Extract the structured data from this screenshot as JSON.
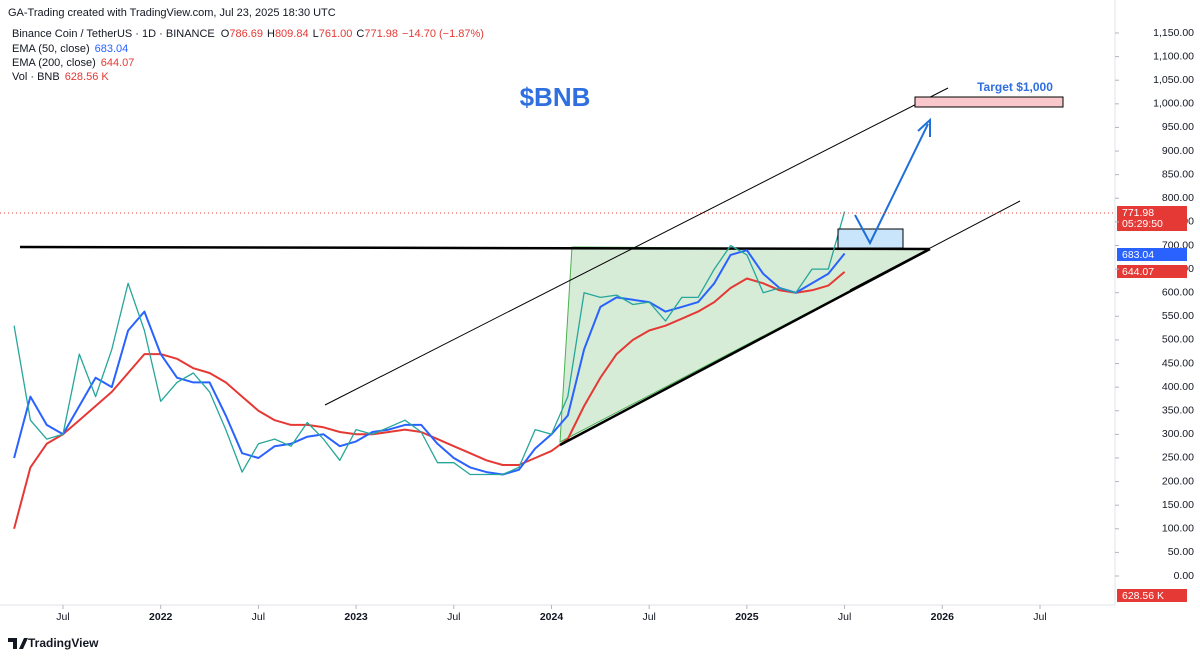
{
  "header": {
    "credit": "GA-Trading created with TradingView.com, Jul 23, 2025 18:30 UTC",
    "symbol": "Binance Coin / TetherUS · 1D · BINANCE",
    "ohlc": [
      {
        "key": "O",
        "value": "786.69"
      },
      {
        "key": "H",
        "value": "809.84"
      },
      {
        "key": "L",
        "value": "761.00"
      },
      {
        "key": "C",
        "value": "771.98"
      }
    ],
    "change": "−14.70 (−1.87%)",
    "ema50": {
      "label": "EMA (50, close)",
      "value": "683.04"
    },
    "ema200": {
      "label": "EMA (200, close)",
      "value": "644.07"
    },
    "volume": {
      "label": "Vol · BNB",
      "value": "628.56 K"
    },
    "countdown": "05:29:50",
    "logo": "TradingView"
  },
  "chart_data": {
    "type": "line",
    "title": "$BNB",
    "annotation": "Target $1,000",
    "x": [
      "2021-04",
      "2021-05",
      "2021-06",
      "2021-07",
      "2021-08",
      "2021-09",
      "2021-10",
      "2021-11",
      "2021-12",
      "2022-01",
      "2022-02",
      "2022-03",
      "2022-04",
      "2022-05",
      "2022-06",
      "2022-07",
      "2022-08",
      "2022-09",
      "2022-10",
      "2022-11",
      "2022-12",
      "2023-01",
      "2023-02",
      "2023-03",
      "2023-04",
      "2023-05",
      "2023-06",
      "2023-07",
      "2023-08",
      "2023-09",
      "2023-10",
      "2023-11",
      "2023-12",
      "2024-01",
      "2024-02",
      "2024-03",
      "2024-04",
      "2024-05",
      "2024-06",
      "2024-07",
      "2024-08",
      "2024-09",
      "2024-10",
      "2024-11",
      "2024-12",
      "2025-01",
      "2025-02",
      "2025-03",
      "2025-04",
      "2025-05",
      "2025-06",
      "2025-07"
    ],
    "series": [
      {
        "name": "Binance Coin / TetherUS",
        "color": "#26a69a",
        "values": [
          530,
          330,
          290,
          300,
          470,
          380,
          480,
          620,
          520,
          370,
          410,
          430,
          390,
          310,
          220,
          280,
          290,
          275,
          325,
          290,
          245,
          310,
          300,
          315,
          330,
          305,
          240,
          240,
          215,
          215,
          215,
          230,
          310,
          300,
          380,
          600,
          590,
          595,
          575,
          580,
          540,
          590,
          590,
          650,
          700,
          680,
          600,
          610,
          600,
          650,
          650,
          771.98
        ]
      },
      {
        "name": "EMA (50, close)",
        "color": "#2962ff",
        "values": [
          250,
          380,
          320,
          300,
          360,
          420,
          400,
          520,
          560,
          470,
          420,
          410,
          410,
          340,
          260,
          250,
          275,
          280,
          295,
          300,
          275,
          285,
          305,
          310,
          320,
          320,
          280,
          250,
          230,
          220,
          215,
          225,
          270,
          300,
          340,
          480,
          570,
          590,
          585,
          580,
          560,
          570,
          580,
          620,
          680,
          690,
          640,
          610,
          600,
          620,
          640,
          683.04
        ]
      },
      {
        "name": "EMA (200, close)",
        "color": "#e53935",
        "values": [
          100,
          230,
          280,
          300,
          330,
          360,
          390,
          430,
          470,
          470,
          460,
          440,
          430,
          410,
          380,
          350,
          330,
          320,
          320,
          315,
          305,
          300,
          300,
          305,
          310,
          305,
          290,
          275,
          260,
          245,
          235,
          235,
          250,
          265,
          290,
          360,
          420,
          470,
          500,
          520,
          530,
          545,
          560,
          580,
          610,
          630,
          620,
          605,
          600,
          605,
          615,
          644.07
        ]
      }
    ],
    "xticks": [
      {
        "value": "2021-07",
        "label": "Jul"
      },
      {
        "value": "2022-01",
        "label": "2022"
      },
      {
        "value": "2022-07",
        "label": "Jul"
      },
      {
        "value": "2023-01",
        "label": "2023"
      },
      {
        "value": "2023-07",
        "label": "Jul"
      },
      {
        "value": "2024-01",
        "label": "2024"
      },
      {
        "value": "2024-07",
        "label": "Jul"
      },
      {
        "value": "2025-01",
        "label": "2025"
      },
      {
        "value": "2025-07",
        "label": "Jul"
      },
      {
        "value": "2026-01",
        "label": "2026"
      },
      {
        "value": "2026-07",
        "label": "Jul"
      }
    ],
    "ylim": [
      0,
      1150
    ],
    "yticks": [
      {
        "value": 0,
        "label": "0.00"
      },
      {
        "value": 50,
        "label": "50.00"
      },
      {
        "value": 100,
        "label": "100.00"
      },
      {
        "value": 150,
        "label": "150.00"
      },
      {
        "value": 200,
        "label": "200.00"
      },
      {
        "value": 250,
        "label": "250.00"
      },
      {
        "value": 300,
        "label": "300.00"
      },
      {
        "value": 350,
        "label": "350.00"
      },
      {
        "value": 400,
        "label": "400.00"
      },
      {
        "value": 450,
        "label": "450.00"
      },
      {
        "value": 500,
        "label": "500.00"
      },
      {
        "value": 550,
        "label": "550.00"
      },
      {
        "value": 600,
        "label": "600.00"
      },
      {
        "value": 650,
        "label": "650.00"
      },
      {
        "value": 700,
        "label": "700.00"
      },
      {
        "value": 750,
        "label": "750.00"
      },
      {
        "value": 800,
        "label": "800.00"
      },
      {
        "value": 850,
        "label": "850.00"
      },
      {
        "value": 900,
        "label": "900.00"
      },
      {
        "value": 950,
        "label": "950.00"
      },
      {
        "value": 1000,
        "label": "1,000.00"
      },
      {
        "value": 1050,
        "label": "1,050.00"
      },
      {
        "value": 1100,
        "label": "1,100.00"
      },
      {
        "value": 1150,
        "label": "1,150.00"
      }
    ]
  }
}
